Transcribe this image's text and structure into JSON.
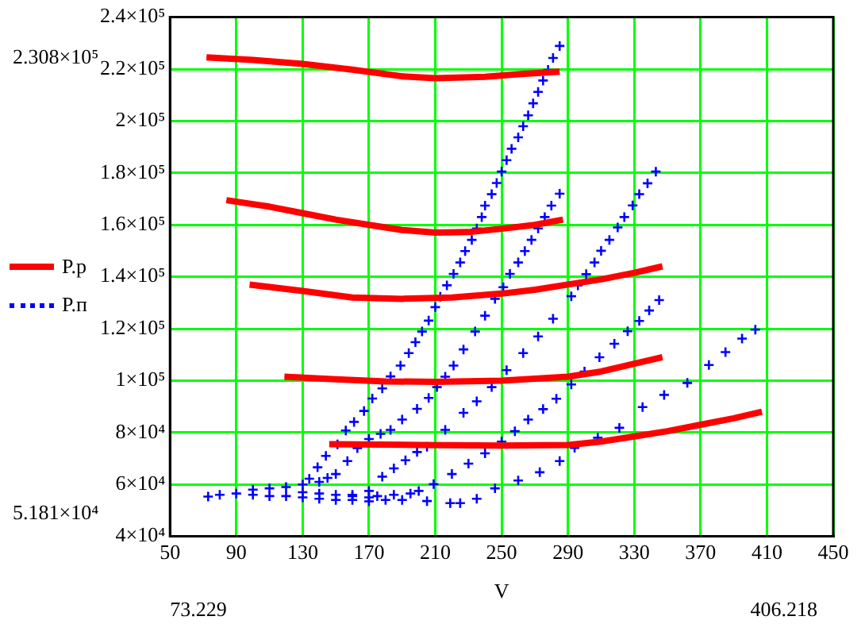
{
  "chart_data": {
    "type": "line",
    "xlabel": "V",
    "legend": "left",
    "grid": true,
    "xlim": [
      50,
      450
    ],
    "xticks": [
      50,
      90,
      130,
      170,
      210,
      250,
      290,
      330,
      370,
      410,
      450
    ],
    "ylim": [
      40000,
      240000
    ],
    "yticks": [
      {
        "value": 40000,
        "label": "4×10⁴"
      },
      {
        "value": 60000,
        "label": "6×10⁴"
      },
      {
        "value": 80000,
        "label": "8×10⁴"
      },
      {
        "value": 100000,
        "label": "1×10⁵"
      },
      {
        "value": 120000,
        "label": "1.2×10⁵"
      },
      {
        "value": 140000,
        "label": "1.4×10⁵"
      },
      {
        "value": 160000,
        "label": "1.6×10⁵"
      },
      {
        "value": 180000,
        "label": "1.8×10⁵"
      },
      {
        "value": 200000,
        "label": "2×10⁵"
      },
      {
        "value": 220000,
        "label": "2.2×10⁵"
      },
      {
        "value": 240000,
        "label": "2.4×10⁵"
      }
    ],
    "annotations": [
      "2.308×10⁵",
      "5.181×10⁴",
      "73.229",
      "406.218"
    ],
    "series": [
      {
        "name": "P.р",
        "color": "#ff0000",
        "line_style": "solid",
        "x": [
          72,
          100,
          130,
          160,
          190,
          210,
          240,
          260,
          285,
          null,
          84,
          110,
          130,
          150,
          170,
          190,
          210,
          230,
          250,
          270,
          287,
          null,
          98,
          130,
          160,
          190,
          220,
          250,
          270,
          290,
          310,
          330,
          347,
          null,
          119,
          150,
          180,
          210,
          250,
          290,
          310,
          330,
          347,
          null,
          146,
          200,
          250,
          290,
          310,
          330,
          350,
          370,
          390,
          407
        ],
        "values": [
          224500,
          223500,
          222000,
          219800,
          217200,
          216500,
          217000,
          218000,
          219000,
          null,
          169500,
          167000,
          164500,
          162000,
          160000,
          158000,
          157000,
          157200,
          158500,
          160000,
          162000,
          null,
          137000,
          134500,
          132000,
          131500,
          132000,
          133500,
          135000,
          137000,
          139000,
          141500,
          144000,
          null,
          101500,
          100500,
          99700,
          99500,
          100000,
          101500,
          103500,
          106500,
          109000,
          null,
          75500,
          75200,
          75000,
          75200,
          76500,
          78500,
          80500,
          83000,
          85500,
          88000
        ]
      },
      {
        "name": "P.п",
        "color": "#0000ff",
        "type": "scatter",
        "marker": "cross",
        "x": [
          73,
          80,
          90,
          100,
          110,
          120,
          130,
          140,
          150,
          160,
          170,
          180,
          190,
          205,
          219,
          225,
          235,
          246,
          260,
          273,
          285,
          294,
          308,
          321,
          335,
          348,
          362,
          375,
          385,
          395,
          403,
          134,
          139,
          144,
          151,
          156,
          161,
          167,
          172,
          178,
          183,
          189,
          194,
          198,
          202,
          206,
          210,
          213,
          217,
          221,
          225,
          228,
          232,
          235,
          238,
          240,
          244,
          247,
          250,
          253,
          256,
          260,
          263,
          266,
          269,
          272,
          275,
          278,
          281,
          285,
          100,
          110,
          120,
          130,
          140,
          145,
          150,
          157,
          163,
          170,
          177,
          183,
          190,
          199,
          206,
          211,
          216,
          221,
          227,
          234,
          240,
          246,
          251,
          255,
          260,
          264,
          268,
          272,
          276,
          280,
          285,
          130,
          140,
          150,
          160,
          170,
          178,
          185,
          192,
          199,
          205,
          216,
          227,
          235,
          244,
          253,
          263,
          272,
          281,
          292,
          296,
          301,
          306,
          310,
          315,
          320,
          324,
          329,
          333,
          338,
          343,
          160,
          170,
          175,
          185,
          195,
          200,
          209,
          220,
          230,
          240,
          250,
          258,
          266,
          275,
          283,
          292,
          300,
          309,
          318,
          326,
          333,
          339,
          345
        ],
        "values": [
          55300,
          56000,
          56500,
          56000,
          55500,
          55500,
          55000,
          54500,
          54000,
          54000,
          53500,
          54000,
          54000,
          53600,
          52800,
          52800,
          54500,
          58500,
          61500,
          64700,
          69000,
          74100,
          78000,
          81800,
          89800,
          94500,
          99100,
          106000,
          111000,
          116200,
          119600,
          62200,
          66600,
          71000,
          75400,
          80800,
          84100,
          88300,
          93100,
          97000,
          101600,
          105800,
          110600,
          114800,
          118900,
          123100,
          128300,
          132300,
          136700,
          141100,
          145500,
          149900,
          154200,
          158600,
          163000,
          167400,
          171800,
          176100,
          180500,
          184900,
          189300,
          193700,
          198000,
          202200,
          206800,
          211200,
          215600,
          219700,
          224300,
          228900,
          58000,
          58500,
          59000,
          60000,
          61000,
          62500,
          64000,
          69000,
          74000,
          77500,
          79500,
          81000,
          85000,
          89100,
          93300,
          97500,
          101500,
          105800,
          112000,
          118900,
          125000,
          131500,
          136000,
          141100,
          145500,
          149900,
          154200,
          158600,
          163000,
          167400,
          172000,
          57000,
          56500,
          56000,
          56000,
          57500,
          63000,
          66200,
          69300,
          72500,
          74500,
          81000,
          87600,
          92000,
          97500,
          104000,
          110600,
          117000,
          123800,
          132500,
          136700,
          141000,
          145500,
          150000,
          154200,
          159000,
          163000,
          167500,
          171800,
          176000,
          180500,
          55500,
          55000,
          55500,
          56000,
          56500,
          57500,
          60100,
          64000,
          68000,
          72000,
          76500,
          80500,
          85000,
          89000,
          93000,
          98500,
          103500,
          109000,
          114200,
          119000,
          123000,
          127000,
          131000
        ]
      }
    ]
  }
}
